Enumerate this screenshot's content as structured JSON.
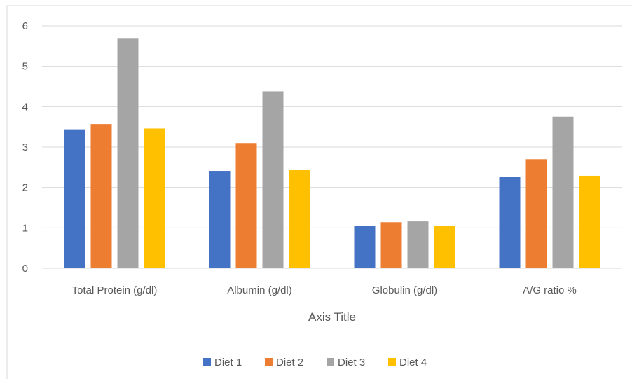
{
  "chart_data": {
    "type": "bar",
    "categories": [
      "Total Protein (g/dl)",
      "Albumin (g/dl)",
      "Globulin (g/dl)",
      "A/G ratio %"
    ],
    "series": [
      {
        "name": "Diet 1",
        "color": "#4472C4",
        "values": [
          3.44,
          2.41,
          1.05,
          2.27
        ]
      },
      {
        "name": "Diet 2",
        "color": "#ED7D31",
        "values": [
          3.57,
          3.1,
          1.14,
          2.7
        ]
      },
      {
        "name": "Diet 3",
        "color": "#A5A5A5",
        "values": [
          5.7,
          4.38,
          1.16,
          3.75
        ]
      },
      {
        "name": "Diet 4",
        "color": "#FFC000",
        "values": [
          3.46,
          2.43,
          1.05,
          2.29
        ]
      }
    ],
    "title": "",
    "xlabel": "Axis Title",
    "ylabel": "",
    "ylim": [
      0,
      6
    ],
    "yticks": [
      "0",
      "1",
      "2",
      "3",
      "4",
      "5",
      "6"
    ],
    "grid": true,
    "legend_position": "bottom"
  }
}
